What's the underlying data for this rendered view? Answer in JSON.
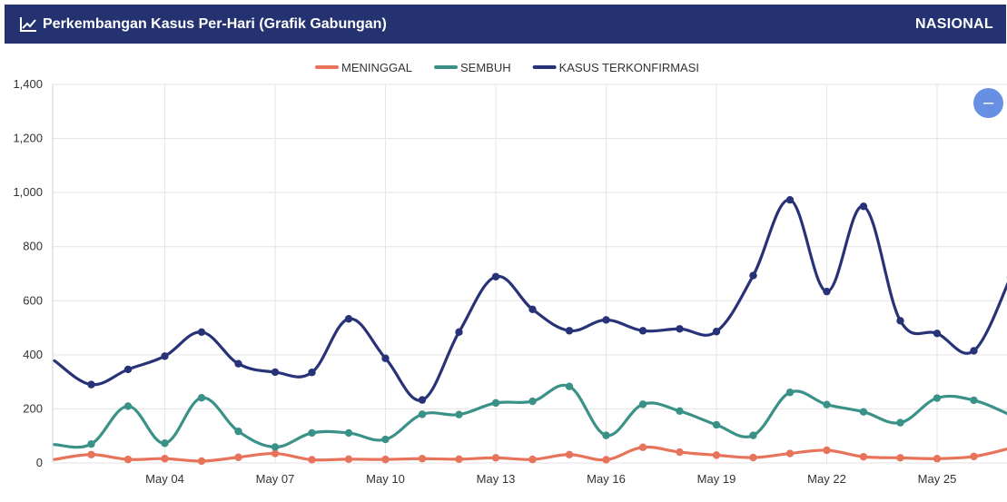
{
  "header": {
    "title": "Perkembangan Kasus Per-Hari (Grafik Gabungan)",
    "region": "NASIONAL"
  },
  "zoom_button": {
    "label": "–"
  },
  "colors": {
    "header_bg": "#243272",
    "meninggal": "#e8735b",
    "sembuh": "#3a9188",
    "terkonfirmasi": "#283377",
    "zoom_button": "#6790e4"
  },
  "chart_data": {
    "type": "line",
    "title": "Perkembangan Kasus Per-Hari (Grafik Gabungan)",
    "x": [
      "May 01",
      "May 02",
      "May 03",
      "May 04",
      "May 05",
      "May 06",
      "May 07",
      "May 08",
      "May 09",
      "May 10",
      "May 11",
      "May 12",
      "May 13",
      "May 14",
      "May 15",
      "May 16",
      "May 17",
      "May 18",
      "May 19",
      "May 20",
      "May 21",
      "May 22",
      "May 23",
      "May 24",
      "May 25",
      "May 26",
      "May 27",
      "May 28"
    ],
    "x_tick_labels": [
      "May 04",
      "May 07",
      "May 10",
      "May 13",
      "May 16",
      "May 19",
      "May 22",
      "May 25",
      "May"
    ],
    "ylim": [
      0,
      1400
    ],
    "y_ticks": [
      "0",
      "200",
      "400",
      "600",
      "800",
      "1,000",
      "1,200",
      "1,400"
    ],
    "legend_position": "top-center",
    "grid": true,
    "series": [
      {
        "name": "MENINGGAL",
        "color": "#e8735b",
        "values": [
          13,
          31,
          13,
          16,
          7,
          21,
          35,
          12,
          14,
          13,
          16,
          14,
          19,
          13,
          31,
          12,
          58,
          40,
          29,
          20,
          35,
          47,
          23,
          19,
          16,
          24,
          55,
          null
        ]
      },
      {
        "name": "SEMBUH",
        "color": "#3a9188",
        "values": [
          68,
          70,
          210,
          73,
          241,
          117,
          59,
          111,
          111,
          87,
          180,
          179,
          222,
          228,
          283,
          102,
          217,
          192,
          141,
          102,
          261,
          216,
          189,
          149,
          240,
          232,
          177,
          null
        ]
      },
      {
        "name": "KASUS TERKONFIRMASI",
        "color": "#283377",
        "values": [
          378,
          290,
          346,
          395,
          484,
          367,
          336,
          335,
          533,
          387,
          233,
          484,
          689,
          568,
          489,
          529,
          489,
          496,
          486,
          693,
          973,
          634,
          949,
          526,
          479,
          415,
          687,
          null
        ]
      }
    ]
  }
}
